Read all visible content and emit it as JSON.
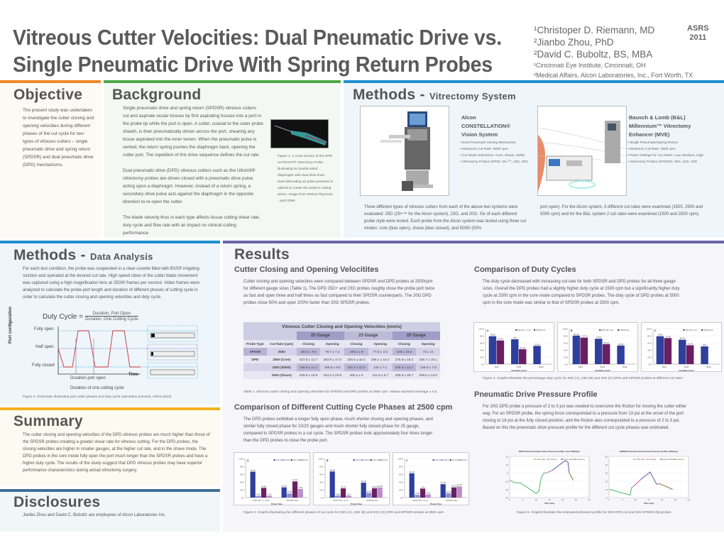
{
  "header": {
    "title_line1": "Vitreous Cutter Velocities: Dual Pneumatic Drive vs.",
    "title_line2": "Single Pneumatic Drive With Spring Return Probes",
    "authors": [
      "¹Christoper D. Riemann, MD",
      "²Jianbo Zhou, PhD",
      "²David C. Buboltz, BS, MBA"
    ],
    "affiliations": [
      "¹Cincinnati Eye Institute, Cincinnati, OH",
      "²Medical Affairs, Alcon Laboratories, Inc., Fort Worth, TX"
    ],
    "conference": "ASRS",
    "year": "2011"
  },
  "colors": {
    "orange": "#f0882a",
    "green": "#4fa84a",
    "blue": "#1f8fcf",
    "purple": "#6a63a8",
    "yellow": "#f0b21e",
    "steel": "#3f6f98",
    "dpd": "#2e3f9e",
    "spdsr": "#6b1f63",
    "closing": "#8c8fd1",
    "opening": "#b890c8"
  },
  "objective": {
    "heading": "Objective",
    "text": "The present study was undertaken to investigate the cutter closing and opening velocities during different phases of the cut cycle for two types of vitreous cutters – single pneumatic drive and spring return (SPDSR) and dual pneumatic drive (DPD) mechanisms."
  },
  "background": {
    "heading": "Background",
    "p1": "Single pneumatic drive and spring return (SPDSR) vitreous cutters cut and aspirate ocular tissues by first aspirating tissues into a port in the probe tip while the port is open.  A cutter, coaxial to the outer probe sheath, is then pneumatically driven across the port, shearing any tissue aspirated into the inner lumen. When the pneumatic pulse is vented, the return spring pushes the diaphragm back, opening the cutter port. The repetition of this drive sequence defines the cut rate.",
    "p2": "Dual pneumatic drive (DPD) vitreous cutters such as the UltraVit® vitrectomy probes are driven closed with a pneumatic drive pulse acting upon a diaphragm. However, instead of a return spring, a secondary drive pulse acts against the diaphragm in the opposite direction to re-open the cutter.",
    "p3": "The blade velocity thus in each type affects tissue cutting shear rate, duty cycle and flow rate  with an impact on clinical cutting performance.",
    "fig1_caption": "Figure 1. A cross section of the DPD ULTRAVIT® Vitrectomy Probe illustrating  its double-sided diaphragm with dual drive lines. Dual alternating air pulse pressure is utilized to create the probe's cutting action.",
    "fig1_source": "Image from Retinal Physician , April 2009."
  },
  "methods_system": {
    "heading": "Methods - ",
    "subheading": "Vitrectomy System",
    "alcon": {
      "name_l1": "Alcon",
      "name_l2": "CONSTELLATION®",
      "name_l3": "Vision System",
      "bullets": [
        "• Dual Pneumatic Driving Mechanism",
        "• Maximum Cut Rate: 5000 cpm",
        "• Cut Mode Selections: Core, Shave, 50/50",
        "• Vitrectomy Probes (DPD): 25+™, 23G, 20G"
      ]
    },
    "bl": {
      "name_l1": "Bausch & Lomb (B&L)",
      "name_l2": "Millennium™ Vitrectomy",
      "name_l3": "Enhancer (MVE)",
      "bullets": [
        "• Single Pneumatic/Spring Return",
        "• Maximum Cut Rate: 2500 cpm",
        "• Panel Settings for Cut Rates: Low, Medium, High",
        "• Vitrectomy Probes (SPDSR): 25G, 23G, 20G"
      ]
    },
    "text_left": "Three different types of vitreous cutters from each of the above two systems were evaluated: 25G (25+™ for the Alcon system), 23G, and 20G. Six of each different probe style were tested. Each probe from the Alcon system was tested using three cut modes: core (bias open), shave (bias closed), and 50/50 (50%",
    "text_right": "port open). For the Alcon system, 3 different cut rates were examined (1500, 2500 and 5000 cpm) and for the B&L system 2 cut rates were examined (1500 and 2500 cpm)."
  },
  "methods_data": {
    "heading": "Methods - ",
    "subheading": "Data Analysis",
    "text": "For each test condition, the probe was suspended in a clear cuvette filled with BSS® irrigating solution and operated at the desired cut rate. High speed video of the cutter blade movement was captured using a high magnification lens at 25000 frames per second. Video frames were analyzed to calculate the probe port length and duration of different phases of cutting cycle in order to calculate the cutter closing and opening velocities and duty cycle.",
    "formula_lhs": "Duty Cycle =",
    "formula_num": "Duration, Port Open",
    "formula_den": "Duration, One Cutting Cycle",
    "y_axis": "Port configuration",
    "levels": [
      "Fully open",
      "Half open",
      "Fully closed"
    ],
    "x_axis": "Time",
    "dur_open": "Duration port open",
    "dur_cycle": "Duration of one cutting cycle",
    "probe_labels": [
      "port",
      "cutter (retracted inside probe)",
      "port",
      "cutter",
      "port",
      "cutter"
    ],
    "fig2_caption": "Figure 2. Schematic illustrating port cutter phases and duty cycle calculation (Novack, ASRS 2010)"
  },
  "summary": {
    "heading": "Summary",
    "text": "The cutter closing and opening velocities of the DPD vitreous probes are much higher than those of the SPDSR probes creating a greater shear rate for vitreous cutting. For the DPD probes, the closing velocities are higher in smaller gauges, at the higher cut rate, and in the shave mode. The DPD probes in the core mode fully open the port much longer than the SPDSR probes and have a higher duty cycle. The results of the study suggest that DPD vitreous probes may have superior performance characteristics during actual vitrectomy surgery."
  },
  "disclosures": {
    "heading": "Disclosures",
    "text": "Jianbo Zhou and David C. Buboltz are employees of Alcon Laboratories Inc."
  },
  "results": {
    "heading": "Results",
    "velocities": {
      "heading": "Cutter Closing and Opening Velocitites",
      "text": "Cutter closing and opening velocities were compared between SPDSR and DPD probes at 2500cpm for different gauge sizes (Table 1). The DPD 25G+ and 23G probes roughly close the probe port twice as fast and open three and half times as fast compared to their SPDSR counterparts. The 20G DPD probes close 50% and open 200% faster than 20G SPDSR probes.",
      "table_title": "Vitreous Cutter Closing and Opening Velocities (mm/s)",
      "gauges": [
        "25 Gauge",
        "23 Gauge",
        "20 Gauge"
      ],
      "columns": [
        "Probe Type",
        "Cut Rate (cpm)",
        "Closing",
        "Opening",
        "Closing",
        "Opening",
        "Closing",
        "Opening"
      ],
      "rows": [
        [
          "SPDSR",
          "2500",
          "165.5 ± 9.5",
          "78.7 ± 7.2",
          "168.1 ± 8",
          "77.5 ± 3.3",
          "188 ± 23.3",
          "73 ± 11"
        ],
        [
          "DPD",
          "2500 (Core)",
          "337.8 ± 12.7",
          "303.9 ± 17.5",
          "334.6 ± 18.4",
          "266.1 ± 10.2",
          "275.8 ± 18.3",
          "235.7 ± 18.1"
        ],
        [
          "",
          "2500 (50/50)",
          "248.9 ± 11.2",
          "165.8 ± 9.5",
          "242.6 ± 22.5",
          "144 ± 7.1",
          "206.5 ± 11.3",
          "148.9 ± 7.9"
        ],
        [
          "",
          "2500 (Shave)",
          "439.9 ± 19.9",
          "224.3 ± 22.9",
          "405.2 ± 6",
          "211.9 ± 5.7",
          "335.8 ± 26.7",
          "208.5 ± 13.6"
        ]
      ],
      "table_caption": "Table 1. Vitreous cutter closing and opening velocities for SPDSR and DPD probes at 2500 cpm. Values represent average ± s.d."
    },
    "phases": {
      "heading": "Comparison of Different Cutting Cycle Phases at 2500 cpm",
      "text": "The DPD probes exhibited a longer fully open phase, much shorter closing and opening phases, and similar fully closed phase for 23/20 gauges and much shorter fully closed phase for 25 gauge, compared to SPDSR probes in a cut cycle. The SPDSR probes took approximately four times longer than the DPD probes to close the probe port.",
      "fig3_caption": "Figure 3. Graphs illustrating  the different phases of cut cycle  for 25G (A), 23G (B) and 20G (C) DPD and SPDSR probes at 2500 cpm"
    },
    "duty": {
      "heading": "Comparison of Duty Cycles",
      "text": "The duty cycle decreased with increasing cut rate for both SPDSR and DPD probes for all three gauge sizes. Overall the DPD probes had a slightly higher duty cycle at 1500 cpm but a significantly higher duty cycle at 2500 cpm in the core mode compared to SPDSR probes. The duty cycle of DPD probes at 5000 cpm in the core mode was similar to that of SPDSR probes at 2500 cpm.",
      "fig4_caption": "Figure 4. Graphs illustrate the percentage duty cycle for  25G (A), 23G (B) and 20G (C) DPD and SPDSR probes at different cut rates"
    },
    "pressure": {
      "heading": "Pneumatic Drive Pressure Profile",
      "text": "For 20G DPD probe a pressure of 2 to 3 psi was needed to overcome the friction for moving the cutter either way. For an SPDSR probe, the spring force corresponded to a pressure from 13 psi at the onset of the port closing to 18 psi at the fully closed position, and the friction also corresponded to a pressure of 2 to 3 psi. Based on this the pneumatic drive pressure profile for the different cut cycle phases was estimated.",
      "fig5_caption": "Figure 5. Graphs illustrate the estimated pressure profile for 23G DPD (A) and 23G SPDSR (B) probes"
    }
  },
  "chart_data": [
    {
      "type": "bar",
      "title": "A",
      "xlabel": "Probe Type",
      "ylabel": "Percentage",
      "ylim": [
        0,
        100
      ],
      "categories": [
        "DPD 25+™, Core",
        "SPDSR 25G"
      ],
      "series": [
        {
          "name": "Fully Open",
          "values": [
            66.3,
            26.2
          ]
        },
        {
          "name": "Closing",
          "values": [
            4.2,
            10.5
          ]
        },
        {
          "name": "Fully Closed",
          "values": [
            24.8,
            41.4
          ]
        },
        {
          "name": "Opening",
          "values": [
            4.7,
            22.0
          ]
        }
      ]
    },
    {
      "type": "bar",
      "title": "B",
      "xlabel": "Probe Type",
      "ylabel": "Percentage",
      "ylim": [
        0,
        100
      ],
      "categories": [
        "DPD 23G, Core",
        "SPDSR 23G"
      ],
      "series": [
        {
          "name": "Fully Open",
          "values": [
            66.8,
            38.1
          ]
        },
        {
          "name": "Closing",
          "values": [
            4.9,
            11.9
          ]
        },
        {
          "name": "Fully Closed",
          "values": [
            23.7,
            23.9
          ]
        },
        {
          "name": "Opening",
          "values": [
            5.0,
            25.9
          ]
        }
      ]
    },
    {
      "type": "bar",
      "title": "C",
      "xlabel": "Probe Type",
      "ylabel": "Percentage",
      "ylim": [
        0,
        100
      ],
      "categories": [
        "DPD 20G, Core",
        "SPDSR 20G"
      ],
      "series": [
        {
          "name": "Fully Open",
          "values": [
            62.1,
            34.3
          ]
        },
        {
          "name": "Closing",
          "values": [
            6.9,
            11.1
          ]
        },
        {
          "name": "Fully Closed",
          "values": [
            23.0,
            26.1
          ]
        },
        {
          "name": "Opening",
          "values": [
            8.1,
            28.7
          ]
        }
      ]
    },
    {
      "type": "bar",
      "title": "A",
      "xlabel": "Cut Rate (cpm)",
      "ylabel": "Duty Cycle",
      "ylim": [
        0,
        100
      ],
      "categories": [
        "1500",
        "2500",
        "5000"
      ],
      "series": [
        {
          "name": "DPD 25+™, Core",
          "values": [
            78.6,
            70.0,
            51.4
          ]
        },
        {
          "name": "SPDSR 25G",
          "values": [
            66.6,
            42.1,
            null
          ]
        }
      ]
    },
    {
      "type": "bar",
      "title": "B",
      "xlabel": "Cut Rate (cpm)",
      "ylabel": "Duty Cycle",
      "ylim": [
        0,
        100
      ],
      "categories": [
        "1500",
        "2500",
        "5000"
      ],
      "series": [
        {
          "name": "DPD 23G, Core",
          "values": [
            80.4,
            71.6,
            52.5
          ]
        },
        {
          "name": "SPDSR 23G",
          "values": [
            74.7,
            56.4,
            null
          ]
        }
      ]
    },
    {
      "type": "bar",
      "title": "C",
      "xlabel": "Cut Rate (cpm)",
      "ylabel": "Duty Cycle",
      "ylim": [
        0,
        100
      ],
      "categories": [
        "1500",
        "2500",
        "5000"
      ],
      "series": [
        {
          "name": "DPD 20G, Core",
          "values": [
            78.6,
            68.7,
            50.0
          ]
        },
        {
          "name": "SPDSR 20G",
          "values": [
            73.4,
            53.2,
            null
          ]
        }
      ]
    },
    {
      "type": "line",
      "title": "DPD Probe Pneumatic Drive Pressure Profile, Core 2500cpm",
      "xlabel": "Time (ms)",
      "ylabel": "Pressure (psi)",
      "xlim": [
        0,
        30
      ],
      "ylim": [
        -30,
        20
      ],
      "series": [
        {
          "name": "Fully Open",
          "x": [
            0,
            2,
            4,
            10,
            11,
            12,
            13,
            14
          ],
          "y": [
            -9,
            -12,
            -12,
            -25,
            -22,
            -5,
            0,
            0
          ]
        },
        {
          "name": "Closing",
          "x": [
            14,
            16
          ],
          "y": [
            0,
            3
          ]
        },
        {
          "name": "Fully Closed",
          "x": [
            16,
            21,
            22,
            22.5
          ],
          "y": [
            3,
            15,
            13,
            0
          ]
        },
        {
          "name": "Opening",
          "x": [
            22.5,
            24
          ],
          "y": [
            0,
            -9
          ]
        }
      ]
    },
    {
      "type": "line",
      "title": "SPDSR Probe Pneumatic Drive Pressure Profile, 2500cpm",
      "xlabel": "Time (ms)",
      "ylabel": "Pressure (psi)",
      "xlim": [
        0,
        30
      ],
      "ylim": [
        0,
        50
      ],
      "series": [
        {
          "name": "Fully Open",
          "x": [
            0,
            8,
            8.5,
            9
          ],
          "y": [
            10,
            3,
            12,
            13
          ]
        },
        {
          "name": "Closing",
          "x": [
            9,
            12
          ],
          "y": [
            13,
            22
          ]
        },
        {
          "name": "Fully Closed",
          "x": [
            12,
            15.5,
            18
          ],
          "y": [
            22,
            31,
            16
          ]
        },
        {
          "name": "Opening",
          "x": [
            18,
            19,
            24
          ],
          "y": [
            16,
            17,
            10
          ]
        }
      ]
    }
  ]
}
